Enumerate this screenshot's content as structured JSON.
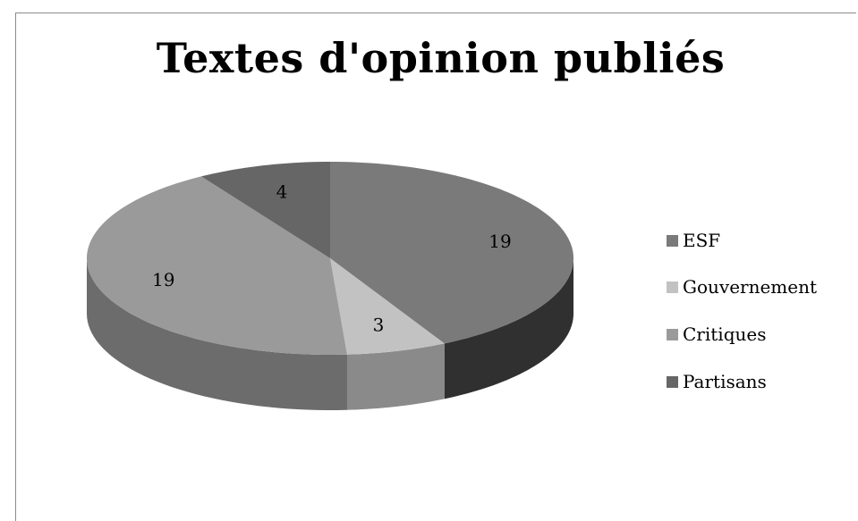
{
  "chart_data": {
    "type": "pie",
    "title": "Textes d'opinion publiés",
    "style": "3d",
    "categories": [
      "ESF",
      "Gouvernement",
      "Critiques",
      "Partisans"
    ],
    "values": [
      19,
      3,
      19,
      4
    ],
    "colors": {
      "top": [
        "#7a7a7a",
        "#c2c2c2",
        "#9a9a9a",
        "#666666"
      ],
      "side": [
        "#303030",
        "#8a8a8a",
        "#6c6c6c",
        "#4a4a4a"
      ]
    },
    "legend_placement": "right"
  }
}
